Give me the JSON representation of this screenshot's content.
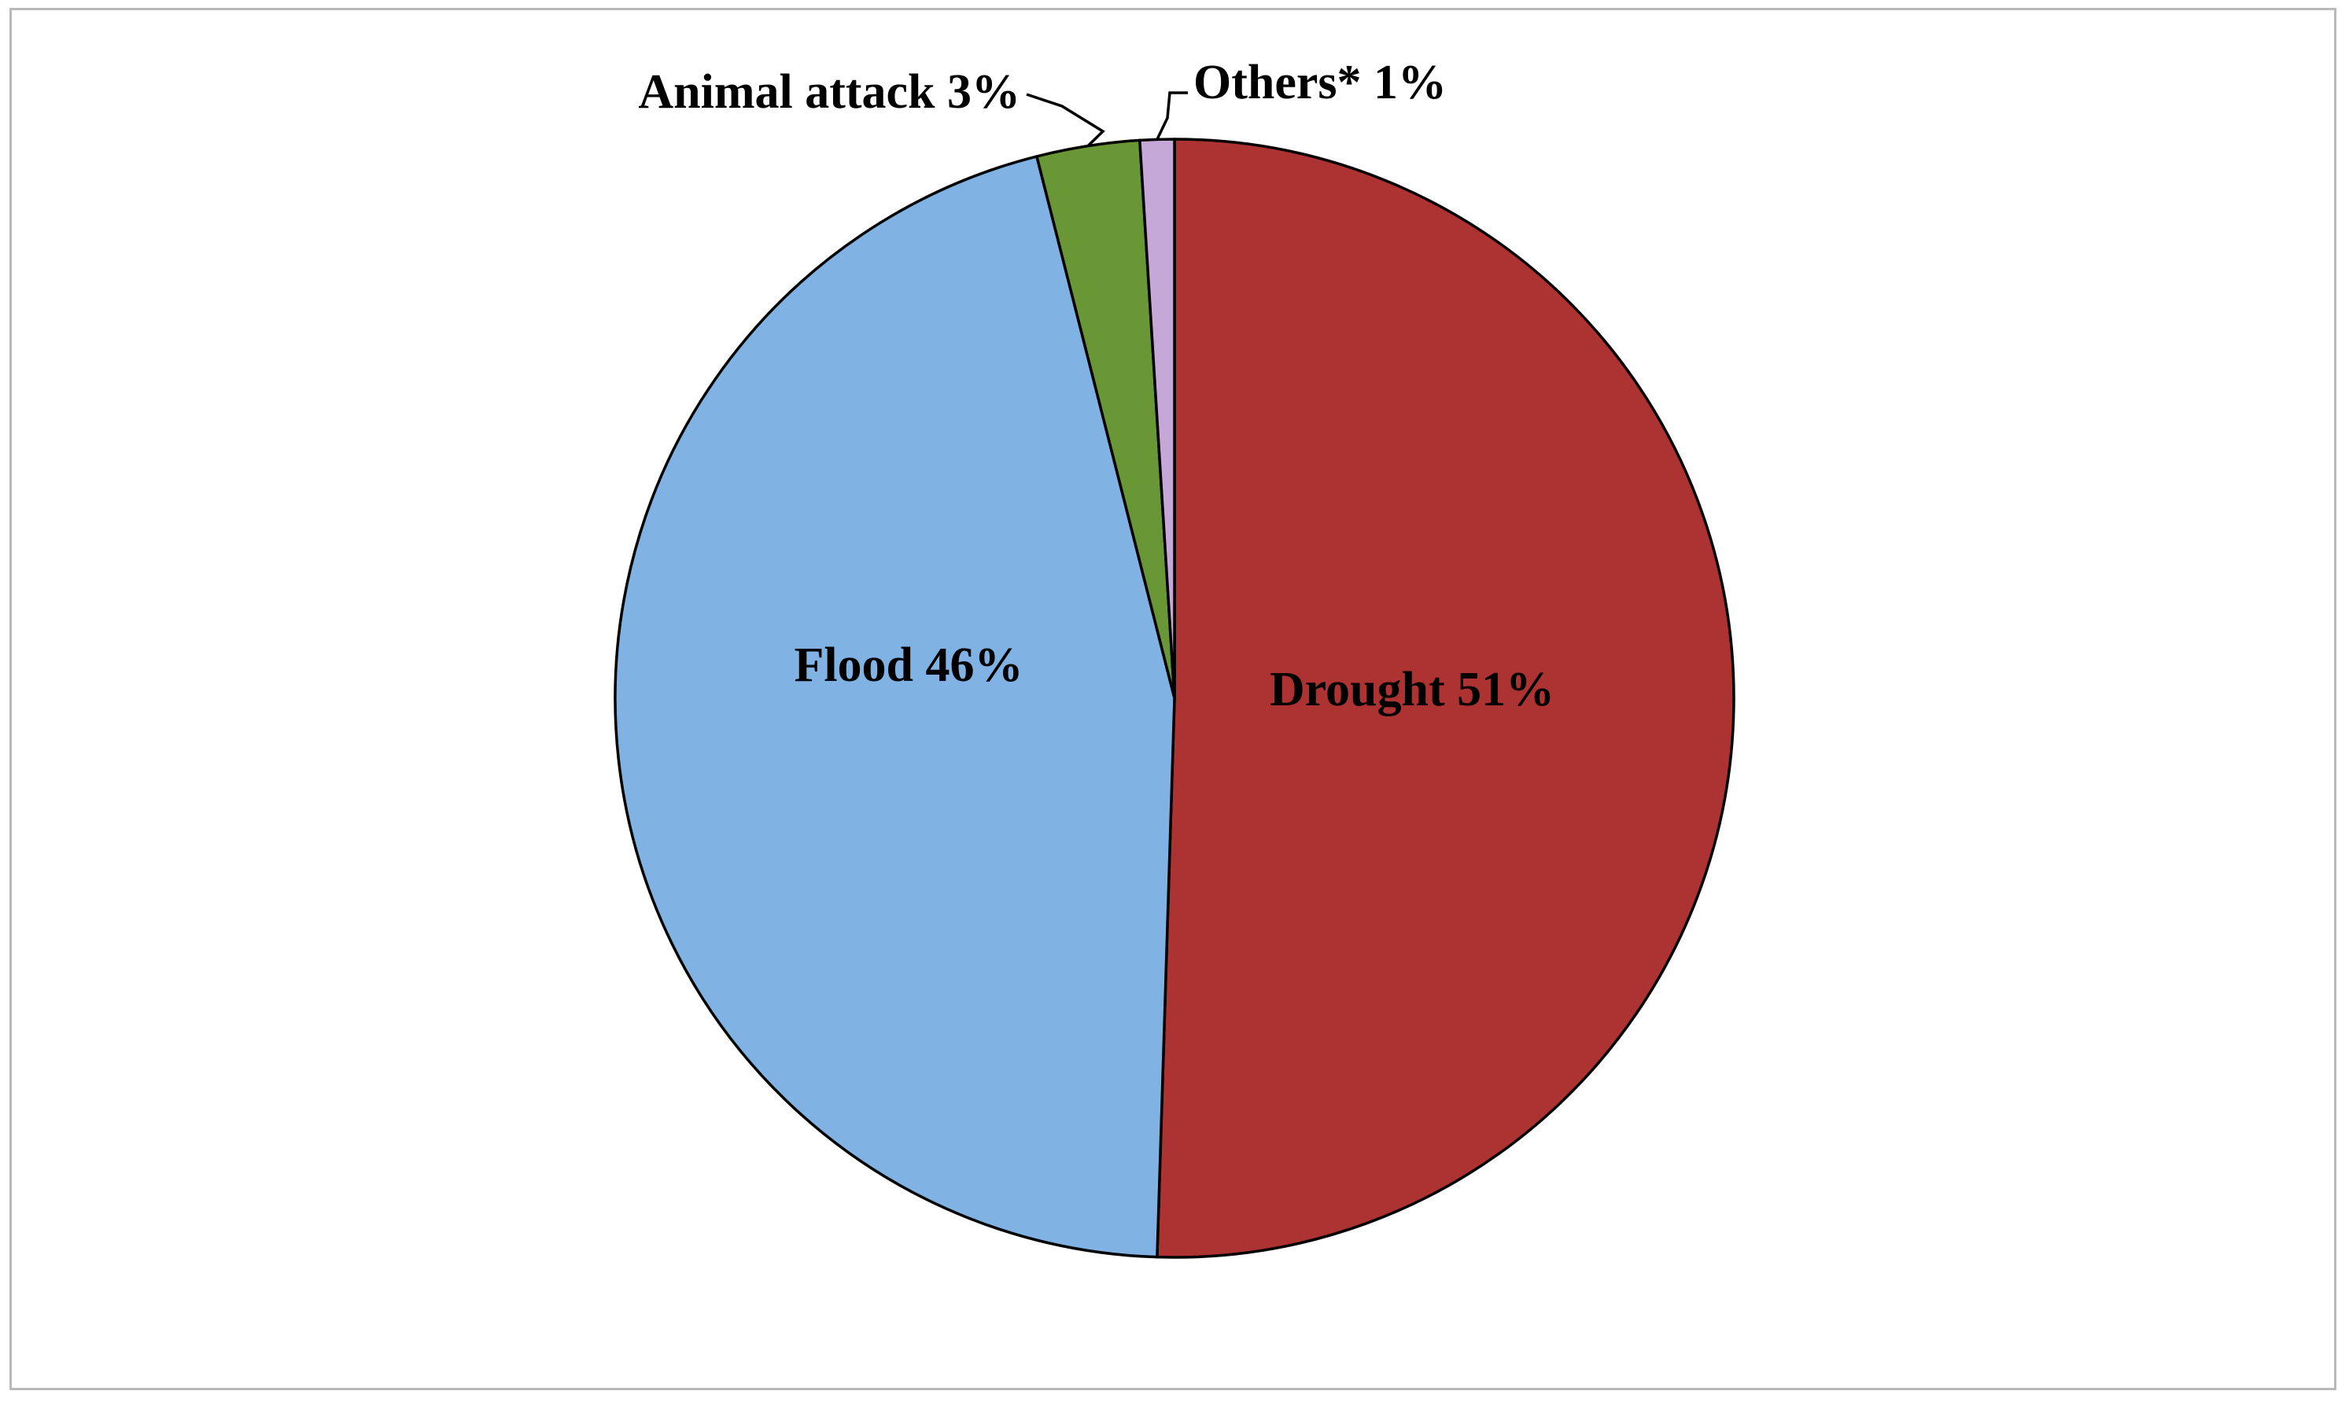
{
  "chart_data": {
    "type": "pie",
    "slices": [
      {
        "name": "Drought",
        "value": 51,
        "label": "Drought 51%",
        "color": "#ad3333"
      },
      {
        "name": "Flood",
        "value": 46,
        "label": "Flood 46%",
        "color": "#80b3e3"
      },
      {
        "name": "Animal attack",
        "value": 3,
        "label": "Animal attack 3%",
        "color": "#6a9735"
      },
      {
        "name": "Others*",
        "value": 1,
        "label": "Others* 1%",
        "color": "#c6a8d8"
      }
    ],
    "start_angle_deg": 0,
    "direction": "clockwise",
    "legend": "none",
    "title": ""
  }
}
